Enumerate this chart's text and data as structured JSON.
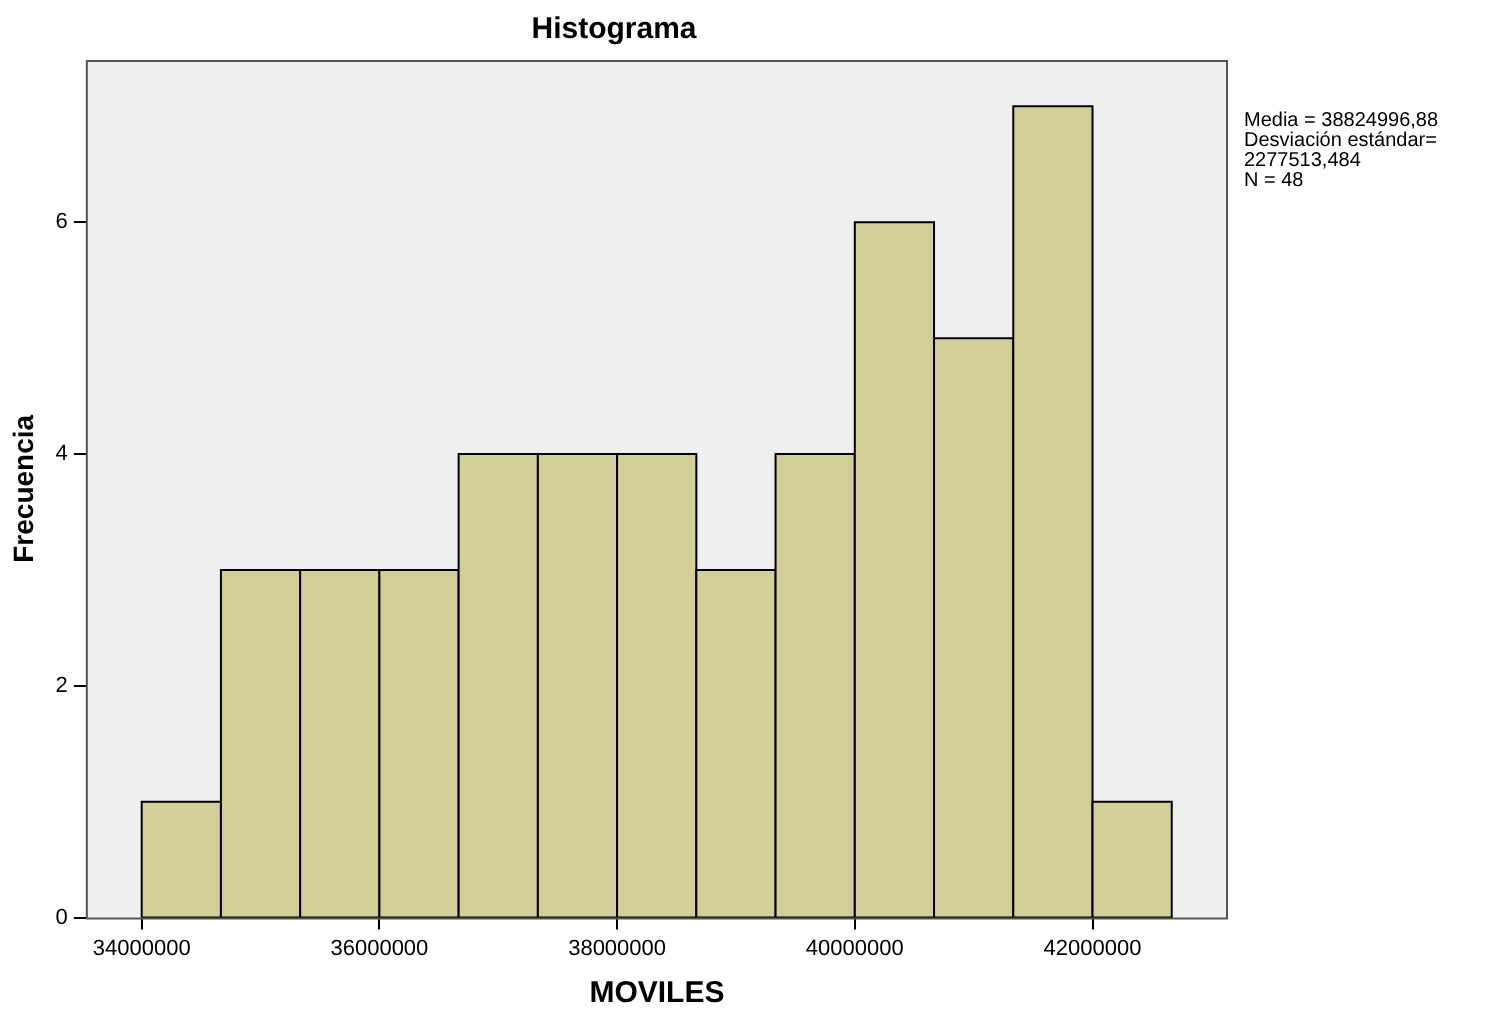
{
  "chart_data": {
    "type": "histogram",
    "title": "Histograma",
    "xlabel": "MOVILES",
    "ylabel": "Frecuencia",
    "bins": [
      34000000,
      34666667,
      35333333,
      36000000,
      36666667,
      37333333,
      38000000,
      38666667,
      39333333,
      40000000,
      40666667,
      41333333,
      42000000,
      42666667
    ],
    "values": [
      1,
      3,
      3,
      3,
      4,
      4,
      4,
      3,
      4,
      6,
      5,
      7,
      1
    ],
    "color": "#d3ce98",
    "xlim": [
      33530000,
      43140000
    ],
    "xticks": [
      34000000,
      36000000,
      38000000,
      40000000,
      42000000
    ],
    "ylim": [
      0,
      7.4
    ],
    "yticks": [
      0,
      2,
      4,
      6
    ],
    "grid": false,
    "legend": false,
    "annotations": [
      "Media = 38824996,88",
      "Desviación estándar=",
      "2277513,484",
      "N = 48"
    ]
  }
}
